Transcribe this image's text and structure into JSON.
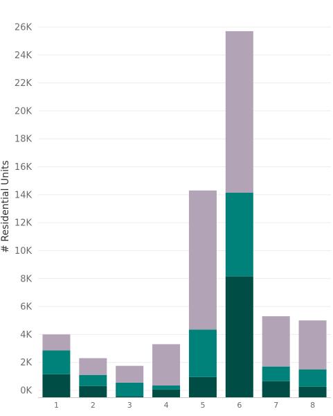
{
  "chart_data": {
    "type": "bar",
    "stacked": true,
    "title": "",
    "xlabel": "",
    "ylabel": "# Residential Units",
    "ylim": [
      0,
      26000
    ],
    "yticks": [
      0,
      2000,
      4000,
      6000,
      8000,
      10000,
      12000,
      14000,
      16000,
      18000,
      20000,
      22000,
      24000,
      26000
    ],
    "ytick_labels": [
      "0K",
      "2K",
      "4K",
      "6K",
      "8K",
      "10K",
      "12K",
      "14K",
      "16K",
      "18K",
      "20K",
      "22K",
      "24K",
      "26K"
    ],
    "categories": [
      "1",
      "2",
      "3",
      "4",
      "5",
      "6",
      "7",
      "8"
    ],
    "series": [
      {
        "color": "#004d45",
        "values": [
          1650,
          800,
          50,
          550,
          1450,
          8650,
          1150,
          750
        ]
      },
      {
        "color": "#00827a",
        "values": [
          1700,
          800,
          1000,
          300,
          3400,
          6000,
          1050,
          1250
        ]
      },
      {
        "color": "#b2a3b7",
        "values": [
          1150,
          1200,
          1200,
          2950,
          9950,
          11550,
          3600,
          3500
        ]
      }
    ],
    "grid": true,
    "legend": "none"
  }
}
